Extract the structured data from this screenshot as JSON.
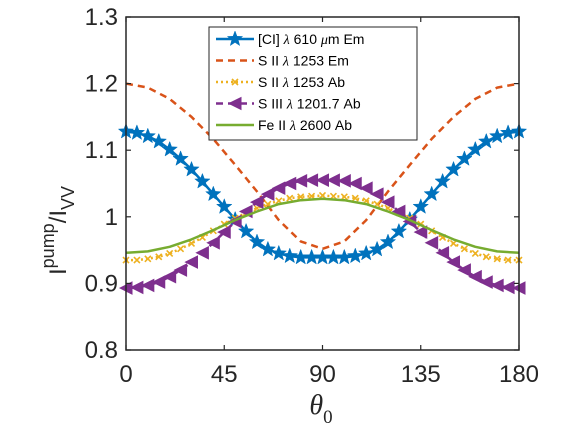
{
  "chart_data": {
    "type": "line",
    "xlabel": "θ",
    "xlabel_sub": "0",
    "ylabel": "I",
    "ylabel_sup": "pump",
    "ylabel_rest": "/I",
    "ylabel_sub": "VV",
    "xlim": [
      0,
      180
    ],
    "ylim": [
      0.8,
      1.3
    ],
    "xticks": [
      0,
      45,
      90,
      135,
      180
    ],
    "xtick_labels": [
      "0",
      "45",
      "90",
      "135",
      "180"
    ],
    "yticks": [
      0.8,
      0.9,
      1.0,
      1.1,
      1.2,
      1.3
    ],
    "ytick_labels": [
      "0.8",
      "0.9",
      "1",
      "1.1",
      "1.2",
      "1.3"
    ],
    "grid": false,
    "legend_position": "top-center",
    "series": [
      {
        "name": "[CI]  λ 610 μm Em",
        "legend_parts": [
          "[CI]  ",
          "λ",
          " 610 ",
          "μ",
          "m Em"
        ],
        "color": "#0072BD",
        "style": "solid",
        "marker": "star",
        "x": [
          0,
          5,
          10,
          15,
          20,
          25,
          30,
          35,
          40,
          45,
          50,
          55,
          60,
          65,
          70,
          75,
          80,
          85,
          90,
          95,
          100,
          105,
          110,
          115,
          120,
          125,
          130,
          135,
          140,
          145,
          150,
          155,
          160,
          165,
          170,
          175,
          180
        ],
        "y": [
          1.128,
          1.126,
          1.121,
          1.113,
          1.101,
          1.087,
          1.071,
          1.053,
          1.034,
          1.015,
          0.996,
          0.978,
          0.962,
          0.951,
          0.945,
          0.941,
          0.939,
          0.939,
          0.939,
          0.939,
          0.939,
          0.941,
          0.945,
          0.951,
          0.962,
          0.978,
          0.996,
          1.015,
          1.034,
          1.053,
          1.071,
          1.087,
          1.101,
          1.113,
          1.121,
          1.126,
          1.128
        ]
      },
      {
        "name": "S II  λ 1253 Em",
        "legend_parts": [
          "S II  ",
          "λ",
          " 1253 Em"
        ],
        "color": "#D95319",
        "style": "dashed",
        "marker": "none",
        "x": [
          0,
          10,
          20,
          30,
          40,
          50,
          60,
          70,
          80,
          90,
          100,
          110,
          120,
          130,
          140,
          150,
          160,
          170,
          180
        ],
        "y": [
          1.2,
          1.194,
          1.177,
          1.15,
          1.117,
          1.078,
          1.038,
          0.995,
          0.963,
          0.952,
          0.963,
          0.995,
          1.038,
          1.078,
          1.117,
          1.15,
          1.177,
          1.194,
          1.2
        ]
      },
      {
        "name": "S II  λ 1253 Ab",
        "legend_parts": [
          "S II  ",
          "λ",
          " 1253 Ab"
        ],
        "color": "#EDB120",
        "style": "dotted",
        "marker": "x",
        "x": [
          0,
          5,
          10,
          15,
          20,
          25,
          30,
          35,
          40,
          45,
          50,
          55,
          60,
          65,
          70,
          75,
          80,
          85,
          90,
          95,
          100,
          105,
          110,
          115,
          120,
          125,
          130,
          135,
          140,
          145,
          150,
          155,
          160,
          165,
          170,
          175,
          180
        ],
        "y": [
          0.935,
          0.935,
          0.937,
          0.94,
          0.945,
          0.952,
          0.96,
          0.969,
          0.979,
          0.989,
          0.998,
          1.006,
          1.013,
          1.019,
          1.024,
          1.028,
          1.03,
          1.031,
          1.032,
          1.031,
          1.03,
          1.028,
          1.024,
          1.019,
          1.013,
          1.006,
          0.998,
          0.989,
          0.979,
          0.969,
          0.96,
          0.952,
          0.945,
          0.94,
          0.937,
          0.935,
          0.935
        ]
      },
      {
        "name": "S III  λ 1201.7 Ab",
        "legend_parts": [
          "S III  ",
          "λ",
          " 1201.7 Ab"
        ],
        "color": "#7E2F8E",
        "style": "dashed",
        "marker": "triangle-left",
        "x": [
          0,
          5,
          10,
          15,
          20,
          25,
          30,
          35,
          40,
          45,
          50,
          55,
          60,
          65,
          70,
          75,
          80,
          85,
          90,
          95,
          100,
          105,
          110,
          115,
          120,
          125,
          130,
          135,
          140,
          145,
          150,
          155,
          160,
          165,
          170,
          175,
          180
        ],
        "y": [
          0.893,
          0.894,
          0.897,
          0.902,
          0.91,
          0.92,
          0.932,
          0.946,
          0.961,
          0.977,
          0.993,
          1.008,
          1.022,
          1.034,
          1.043,
          1.05,
          1.054,
          1.055,
          1.055,
          1.055,
          1.054,
          1.05,
          1.043,
          1.034,
          1.022,
          1.008,
          0.993,
          0.977,
          0.961,
          0.946,
          0.932,
          0.92,
          0.91,
          0.902,
          0.897,
          0.894,
          0.893
        ]
      },
      {
        "name": "Fe II  λ 2600 Ab",
        "legend_parts": [
          "Fe II  ",
          "λ",
          " 2600 Ab"
        ],
        "color": "#77AC30",
        "style": "solid",
        "marker": "none",
        "x": [
          0,
          10,
          20,
          30,
          40,
          50,
          60,
          70,
          80,
          90,
          100,
          110,
          120,
          130,
          140,
          150,
          160,
          170,
          180
        ],
        "y": [
          0.946,
          0.948,
          0.955,
          0.966,
          0.98,
          0.995,
          1.008,
          1.019,
          1.025,
          1.027,
          1.025,
          1.019,
          1.008,
          0.995,
          0.98,
          0.966,
          0.955,
          0.948,
          0.946
        ]
      }
    ]
  }
}
